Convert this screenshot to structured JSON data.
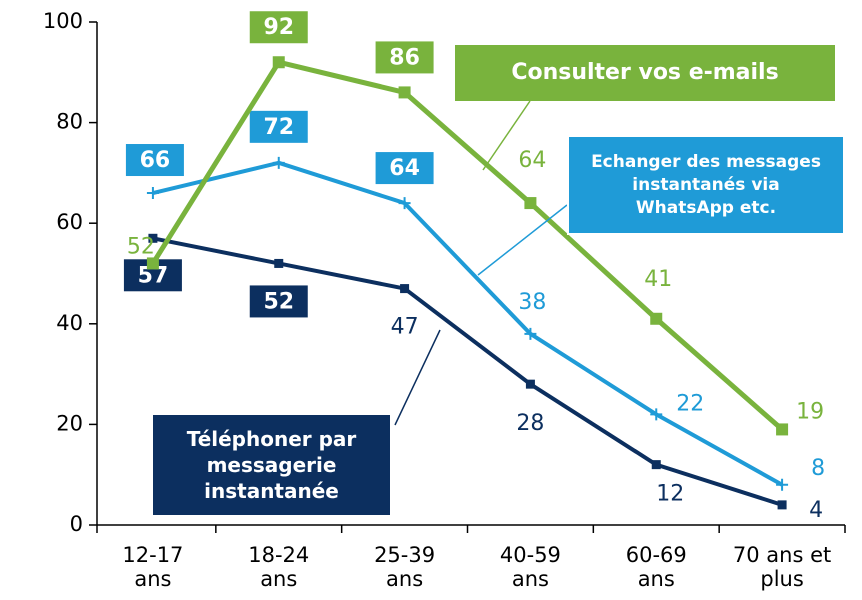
{
  "chart_data": {
    "type": "line",
    "categories": [
      "12-17\nans",
      "18-24\nans",
      "25-39\nans",
      "40-59\nans",
      "60-69\nans",
      "70 ans et\nplus"
    ],
    "series": [
      {
        "name": "Consulter vos e-mails",
        "color": "#79b33d",
        "values": [
          52,
          92,
          86,
          64,
          41,
          19
        ]
      },
      {
        "name": "Echanger des messages instantanés via WhatsApp etc.",
        "color": "#1f9bd7",
        "values": [
          66,
          72,
          64,
          38,
          22,
          8
        ]
      },
      {
        "name": "Téléphoner par messagerie instantanée",
        "color": "#0c2f5f",
        "values": [
          57,
          52,
          47,
          28,
          12,
          4
        ]
      }
    ],
    "ylim": [
      0,
      100
    ],
    "yticks": [
      0,
      20,
      40,
      60,
      80,
      100
    ]
  }
}
